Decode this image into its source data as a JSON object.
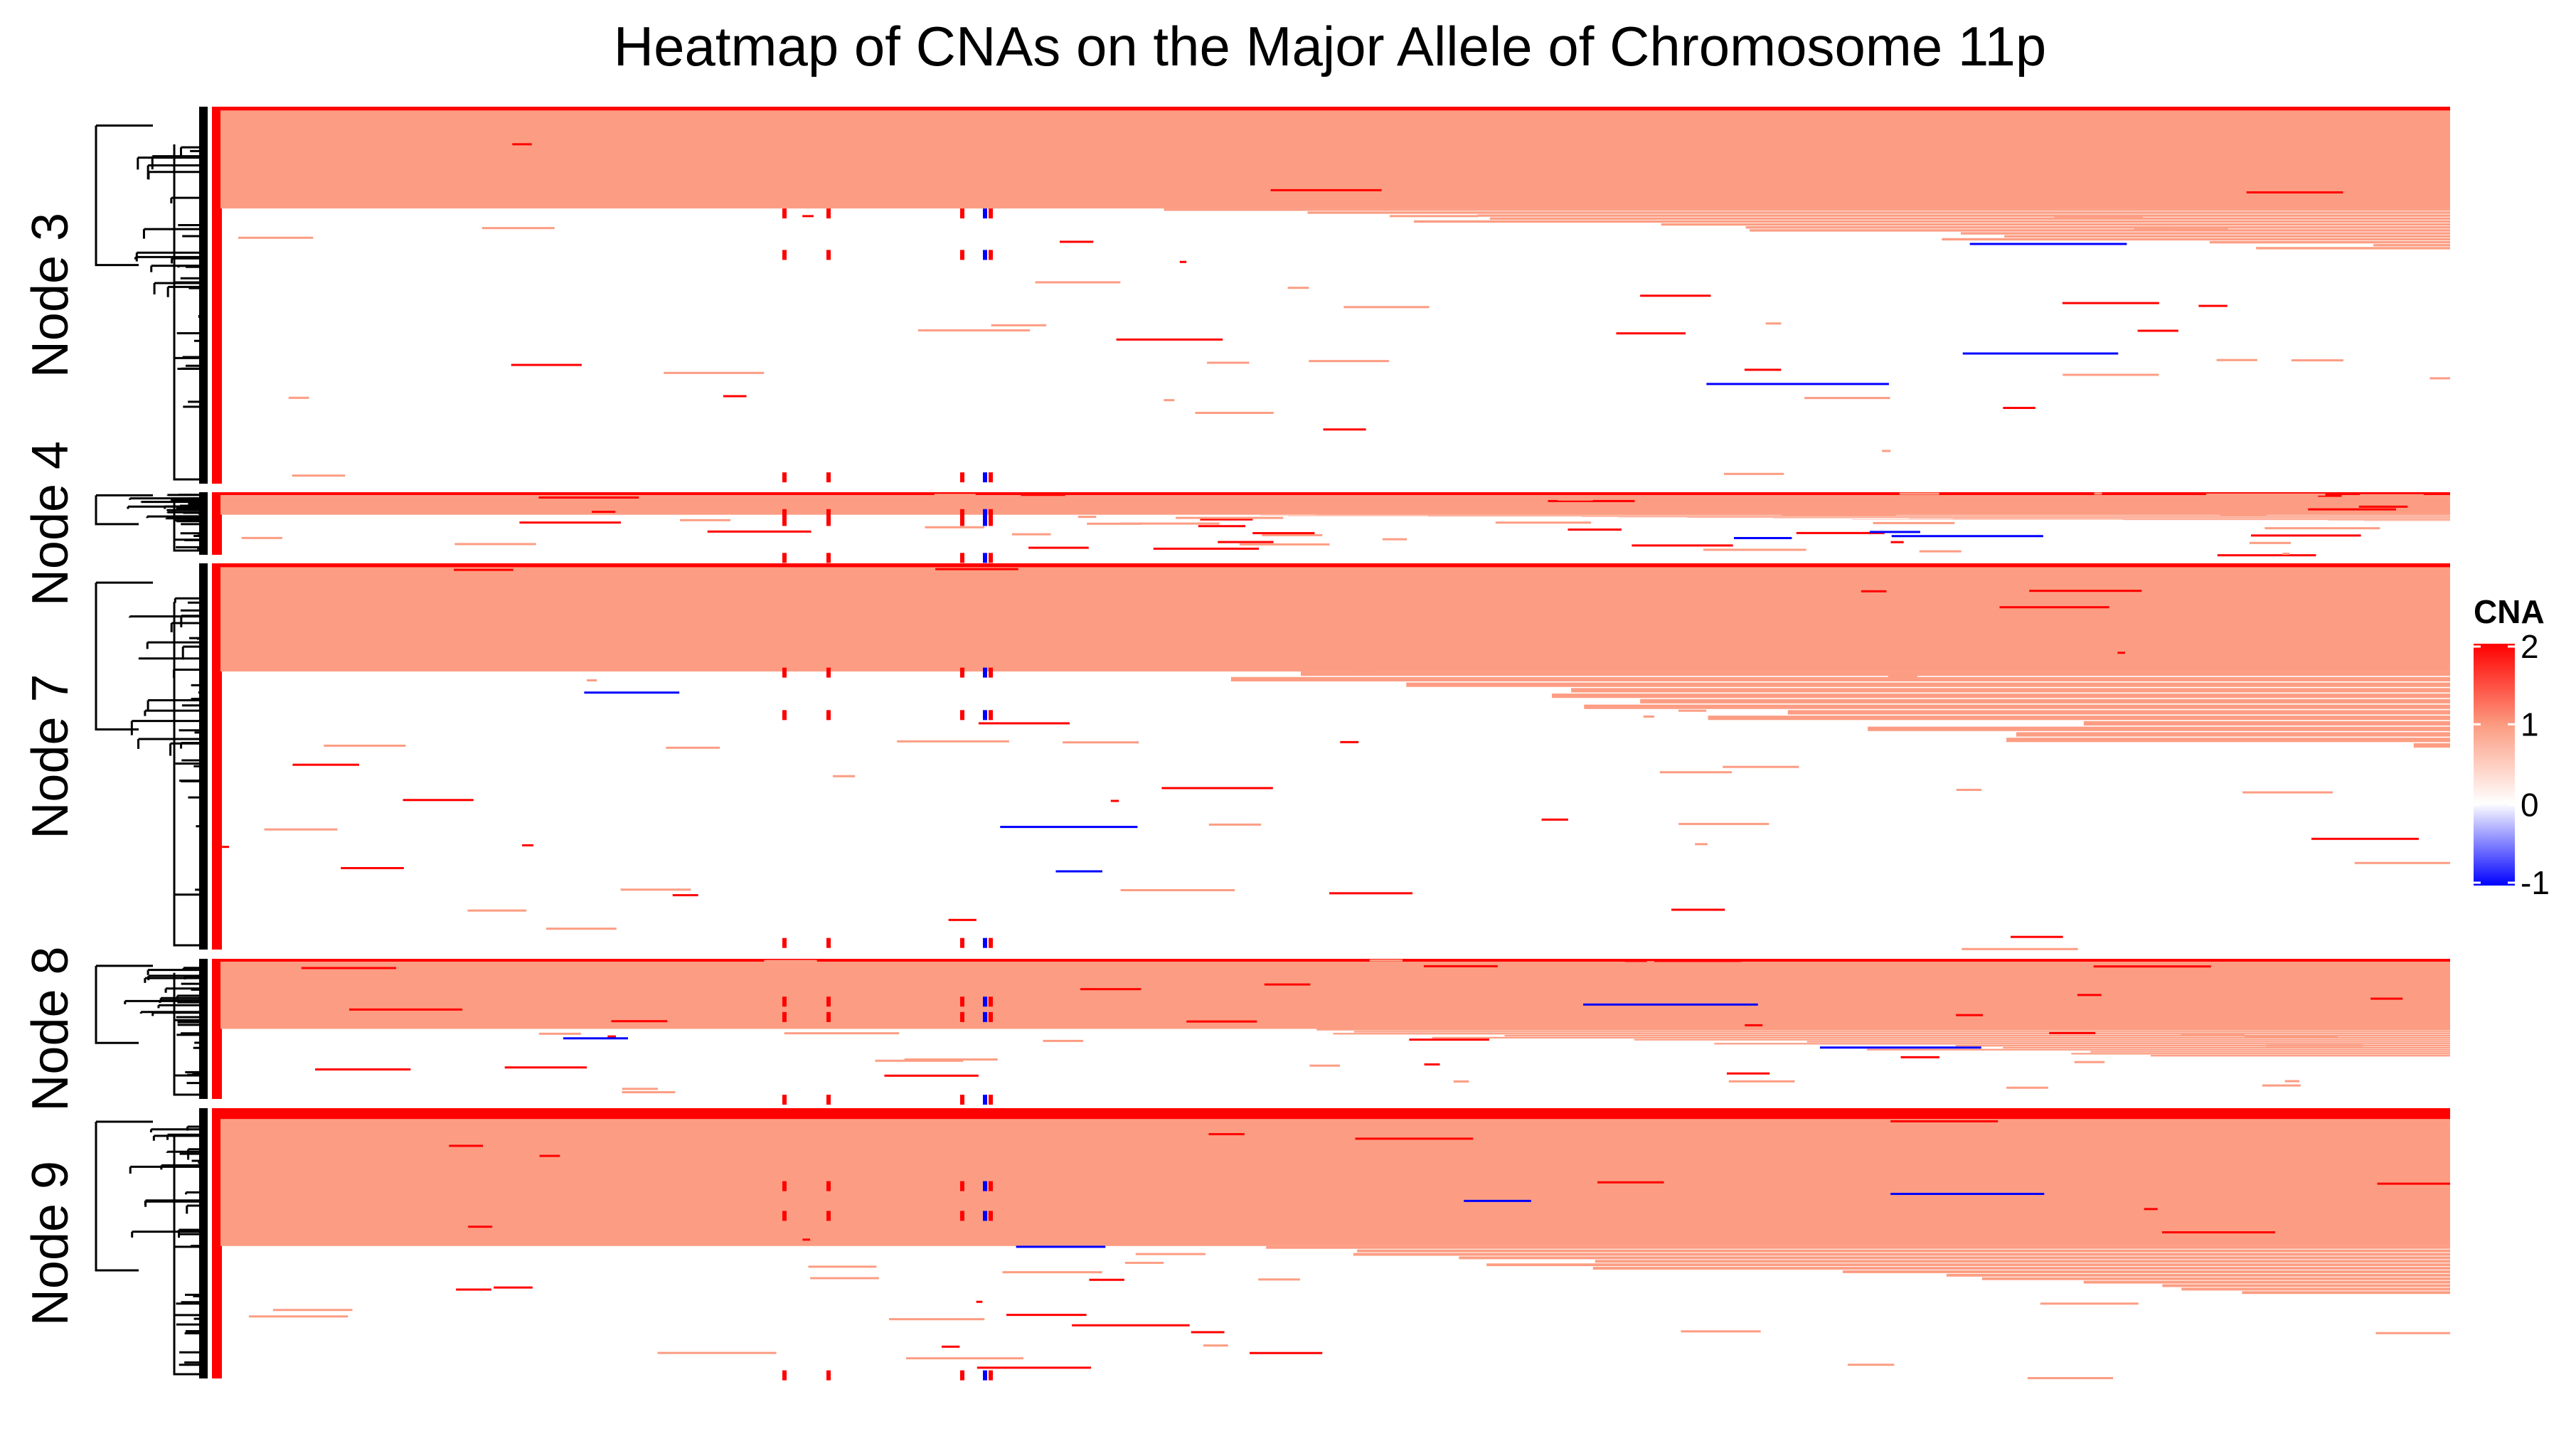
{
  "chart_data": {
    "type": "heatmap",
    "title": "Heatmap of CNAs on the Major Allele of Chromosome 11p",
    "xlabel": "",
    "ylabel": "",
    "legend": {
      "title": "CNA",
      "position": "right",
      "ticks": [
        "2",
        "1",
        "0",
        "-1"
      ],
      "values": [
        2,
        1,
        0,
        -1
      ],
      "colors": {
        "high": "#ff0000",
        "mid_high": "#fc9d83",
        "zero": "#ffffff",
        "low": "#0000ff"
      }
    },
    "row_groups": [
      {
        "label": "Node 3",
        "gain_fraction": 0.27,
        "top_red_fraction": 0.01,
        "stair_fraction": 0.11
      },
      {
        "label": "Node 4",
        "gain_fraction": 0.36,
        "top_red_fraction": 0.03,
        "stair_fraction": 0.1
      },
      {
        "label": "Node 7",
        "gain_fraction": 0.28,
        "top_red_fraction": 0.01,
        "stair_fraction": 0.2
      },
      {
        "label": "Node 8",
        "gain_fraction": 0.5,
        "top_red_fraction": 0.02,
        "stair_fraction": 0.2
      },
      {
        "label": "Node 9",
        "gain_fraction": 0.51,
        "top_red_fraction": 0.04,
        "stair_fraction": 0.18
      }
    ],
    "grid": false
  },
  "colors": {
    "gain": "#fc9d83",
    "amplification": "#ff0000",
    "loss": "#0000ff",
    "annotation_bar": "#ff0000",
    "dendrogram": "#000000"
  }
}
